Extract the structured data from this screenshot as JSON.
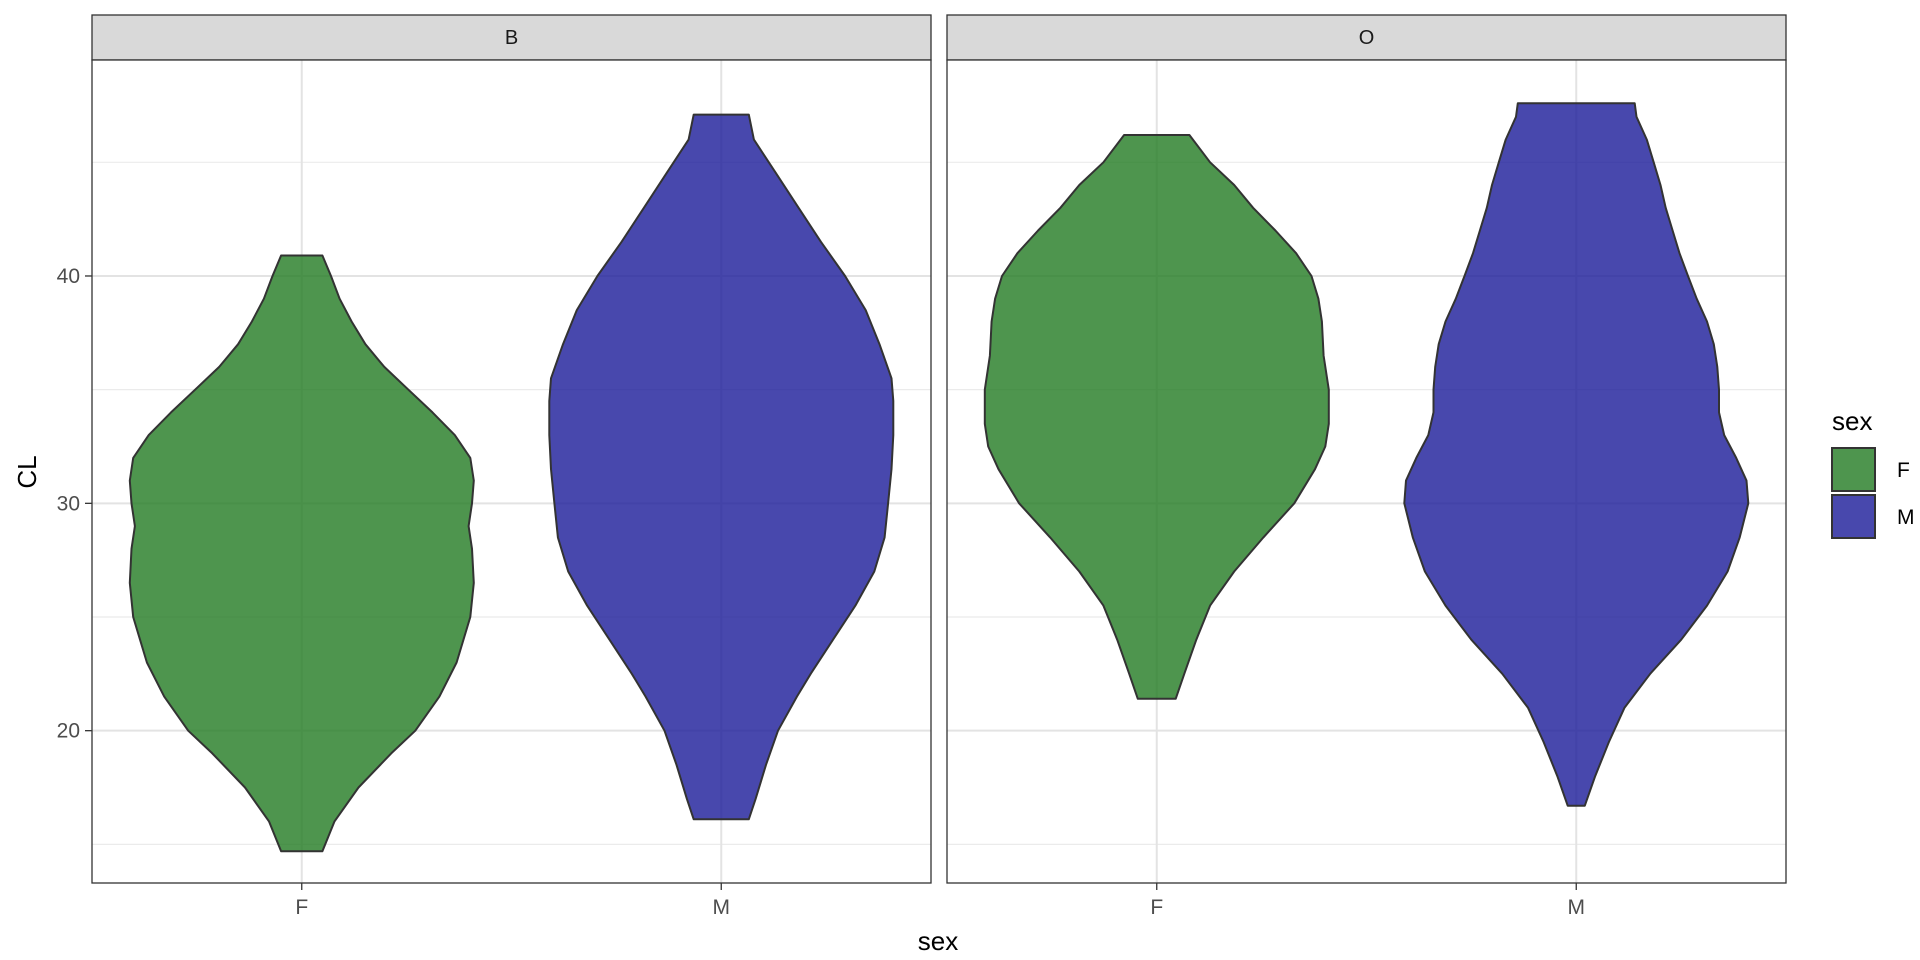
{
  "chart_data": {
    "type": "violin",
    "title": "",
    "xlabel": "sex",
    "ylabel": "CL",
    "ylim": [
      13.3,
      49.5
    ],
    "yticks": [
      20,
      30,
      40
    ],
    "grid": true,
    "categories": [
      "F",
      "M"
    ],
    "facets": [
      {
        "label": "B",
        "violins": [
          {
            "category": "F",
            "min": 14.7,
            "max": 40.9,
            "profile": [
              [
                14.7,
                0.12
              ],
              [
                16,
                0.19
              ],
              [
                17.5,
                0.33
              ],
              [
                19,
                0.52
              ],
              [
                20,
                0.66
              ],
              [
                21.5,
                0.8
              ],
              [
                23,
                0.9
              ],
              [
                25,
                0.98
              ],
              [
                26.5,
                1.0
              ],
              [
                28,
                0.99
              ],
              [
                29,
                0.97
              ],
              [
                30,
                0.99
              ],
              [
                31,
                1.0
              ],
              [
                32,
                0.98
              ],
              [
                33,
                0.89
              ],
              [
                34,
                0.76
              ],
              [
                35,
                0.62
              ],
              [
                36,
                0.48
              ],
              [
                37,
                0.37
              ],
              [
                38,
                0.29
              ],
              [
                39,
                0.22
              ],
              [
                40,
                0.17
              ],
              [
                40.9,
                0.12
              ]
            ]
          },
          {
            "category": "M",
            "min": 16.1,
            "max": 47.1,
            "profile": [
              [
                16.1,
                0.16
              ],
              [
                17,
                0.2
              ],
              [
                18.5,
                0.26
              ],
              [
                20,
                0.33
              ],
              [
                21.5,
                0.44
              ],
              [
                22.5,
                0.52
              ],
              [
                24,
                0.65
              ],
              [
                25.5,
                0.78
              ],
              [
                27,
                0.89
              ],
              [
                28.5,
                0.95
              ],
              [
                30,
                0.97
              ],
              [
                31.5,
                0.99
              ],
              [
                33,
                1.0
              ],
              [
                34.5,
                1.0
              ],
              [
                35.5,
                0.99
              ],
              [
                37,
                0.92
              ],
              [
                38.5,
                0.84
              ],
              [
                40,
                0.72
              ],
              [
                41.5,
                0.58
              ],
              [
                43,
                0.45
              ],
              [
                44.5,
                0.32
              ],
              [
                46,
                0.19
              ],
              [
                47.1,
                0.16
              ]
            ]
          }
        ]
      },
      {
        "label": "O",
        "violins": [
          {
            "category": "F",
            "min": 21.4,
            "max": 46.2,
            "profile": [
              [
                21.4,
                0.11
              ],
              [
                22.5,
                0.16
              ],
              [
                24,
                0.23
              ],
              [
                25.5,
                0.31
              ],
              [
                27,
                0.45
              ],
              [
                28.5,
                0.62
              ],
              [
                30,
                0.8
              ],
              [
                31.5,
                0.92
              ],
              [
                32.5,
                0.98
              ],
              [
                33.5,
                1.0
              ],
              [
                35,
                1.0
              ],
              [
                36.5,
                0.97
              ],
              [
                38,
                0.96
              ],
              [
                39,
                0.94
              ],
              [
                40,
                0.9
              ],
              [
                41,
                0.81
              ],
              [
                42,
                0.69
              ],
              [
                43,
                0.56
              ],
              [
                44,
                0.45
              ],
              [
                45,
                0.31
              ],
              [
                46.2,
                0.19
              ]
            ]
          },
          {
            "category": "M",
            "min": 16.7,
            "max": 47.6,
            "profile": [
              [
                16.7,
                0.05
              ],
              [
                18,
                0.11
              ],
              [
                19.5,
                0.19
              ],
              [
                21,
                0.28
              ],
              [
                22.5,
                0.43
              ],
              [
                24,
                0.61
              ],
              [
                25.5,
                0.76
              ],
              [
                27,
                0.88
              ],
              [
                28.5,
                0.95
              ],
              [
                30,
                1.0
              ],
              [
                31,
                0.99
              ],
              [
                32,
                0.93
              ],
              [
                33,
                0.86
              ],
              [
                34,
                0.83
              ],
              [
                35,
                0.83
              ],
              [
                36,
                0.82
              ],
              [
                37,
                0.8
              ],
              [
                38,
                0.76
              ],
              [
                39,
                0.7
              ],
              [
                40,
                0.65
              ],
              [
                41,
                0.6
              ],
              [
                42,
                0.56
              ],
              [
                43,
                0.52
              ],
              [
                44,
                0.49
              ],
              [
                45,
                0.45
              ],
              [
                46,
                0.41
              ],
              [
                47,
                0.35
              ],
              [
                47.6,
                0.34
              ]
            ]
          }
        ]
      }
    ],
    "legend": {
      "title": "sex",
      "position": "right",
      "items": [
        {
          "label": "F",
          "color": "#227a22"
        },
        {
          "label": "M",
          "color": "#1a1a99"
        }
      ]
    },
    "colors": {
      "F": "#227a22",
      "M": "#1a1a99"
    },
    "fill_opacity": 0.8
  }
}
